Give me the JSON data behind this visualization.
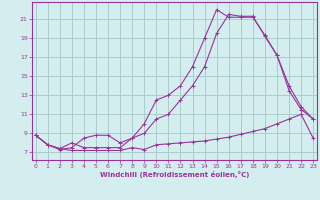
{
  "xlabel": "Windchill (Refroidissement éolien,°C)",
  "bg_color": "#d4eef0",
  "line_color": "#993399",
  "grid_color": "#aacccc",
  "x_ticks": [
    0,
    1,
    2,
    3,
    4,
    5,
    6,
    7,
    8,
    9,
    10,
    11,
    12,
    13,
    14,
    15,
    16,
    17,
    18,
    19,
    20,
    21,
    22,
    23
  ],
  "y_ticks": [
    7,
    9,
    11,
    13,
    15,
    17,
    19,
    21
  ],
  "xlim": [
    -0.3,
    23.3
  ],
  "ylim": [
    6.2,
    22.8
  ],
  "series1_x": [
    0,
    1,
    2,
    3,
    4,
    5,
    6,
    7,
    8,
    9,
    10,
    11,
    12,
    13,
    14,
    15,
    16,
    17,
    18,
    19,
    20,
    21,
    22,
    23
  ],
  "series1_y": [
    8.8,
    7.8,
    7.4,
    7.2,
    7.2,
    7.2,
    7.2,
    7.2,
    7.5,
    7.3,
    7.8,
    7.9,
    8.0,
    8.1,
    8.2,
    8.4,
    8.6,
    8.9,
    9.2,
    9.5,
    10.0,
    10.5,
    11.0,
    8.5
  ],
  "series2_x": [
    0,
    1,
    2,
    3,
    4,
    5,
    6,
    7,
    8,
    9,
    10,
    11,
    12,
    13,
    14,
    15,
    16,
    17,
    18,
    19,
    20,
    21,
    22,
    23
  ],
  "series2_y": [
    8.8,
    7.8,
    7.4,
    8.0,
    7.5,
    7.5,
    7.5,
    7.5,
    8.5,
    9.0,
    10.5,
    11.0,
    12.5,
    14.0,
    16.0,
    19.5,
    21.5,
    21.3,
    21.3,
    19.2,
    17.2,
    13.5,
    11.5,
    10.5
  ],
  "series3_x": [
    0,
    1,
    2,
    3,
    4,
    5,
    6,
    7,
    8,
    9,
    10,
    11,
    12,
    13,
    14,
    15,
    16,
    17,
    18,
    19,
    20,
    21,
    22,
    23
  ],
  "series3_y": [
    8.8,
    7.8,
    7.3,
    7.5,
    8.5,
    8.8,
    8.8,
    8.0,
    8.5,
    10.0,
    12.5,
    13.0,
    14.0,
    16.0,
    19.0,
    22.0,
    21.2,
    21.2,
    21.2,
    19.3,
    17.2,
    14.0,
    11.8,
    10.5
  ]
}
